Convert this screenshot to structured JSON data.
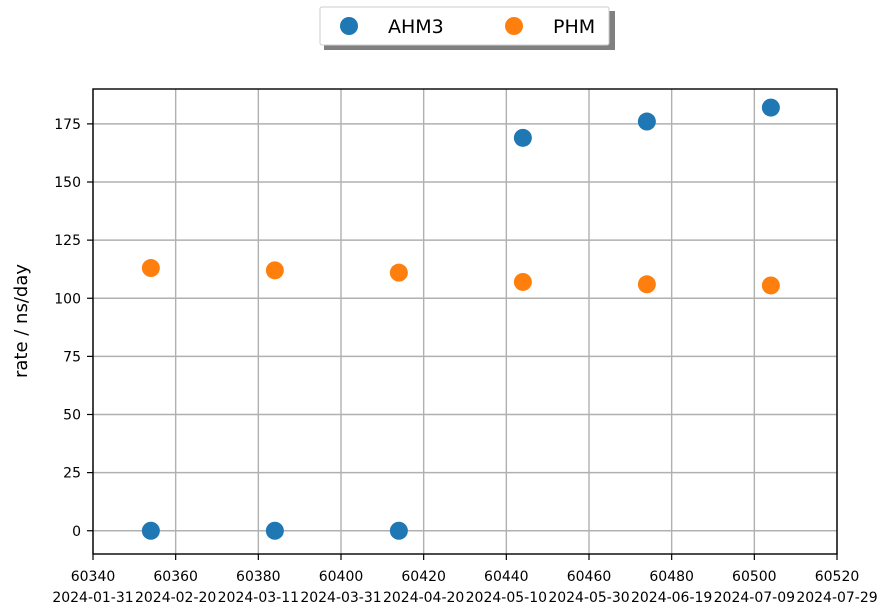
{
  "chart_data": {
    "type": "scatter",
    "ylabel": "rate / ns/day",
    "xlim": [
      60340,
      60520
    ],
    "ylim": [
      -10,
      190
    ],
    "grid": true,
    "legend": {
      "placement": "top-center"
    },
    "x_ticks": [
      {
        "value": 60340,
        "mjd": "60340",
        "date": "2024-01-31"
      },
      {
        "value": 60360,
        "mjd": "60360",
        "date": "2024-02-20"
      },
      {
        "value": 60380,
        "mjd": "60380",
        "date": "2024-03-11"
      },
      {
        "value": 60400,
        "mjd": "60400",
        "date": "2024-03-31"
      },
      {
        "value": 60420,
        "mjd": "60420",
        "date": "2024-04-20"
      },
      {
        "value": 60440,
        "mjd": "60440",
        "date": "2024-05-10"
      },
      {
        "value": 60460,
        "mjd": "60460",
        "date": "2024-05-30"
      },
      {
        "value": 60480,
        "mjd": "60480",
        "date": "2024-06-19"
      },
      {
        "value": 60500,
        "mjd": "60500",
        "date": "2024-07-09"
      },
      {
        "value": 60520,
        "mjd": "60520",
        "date": "2024-07-29"
      }
    ],
    "y_ticks": [
      0,
      25,
      50,
      75,
      100,
      125,
      150,
      175
    ],
    "series": [
      {
        "name": "AHM3",
        "color": "#1f77b4",
        "x": [
          60354,
          60384,
          60414,
          60444,
          60474,
          60504
        ],
        "y": [
          0,
          0,
          0,
          169,
          176,
          182
        ]
      },
      {
        "name": "PHM",
        "color": "#ff7f0e",
        "x": [
          60354,
          60384,
          60414,
          60444,
          60474,
          60504
        ],
        "y": [
          113,
          112,
          111,
          107,
          106,
          105.5
        ]
      }
    ]
  }
}
